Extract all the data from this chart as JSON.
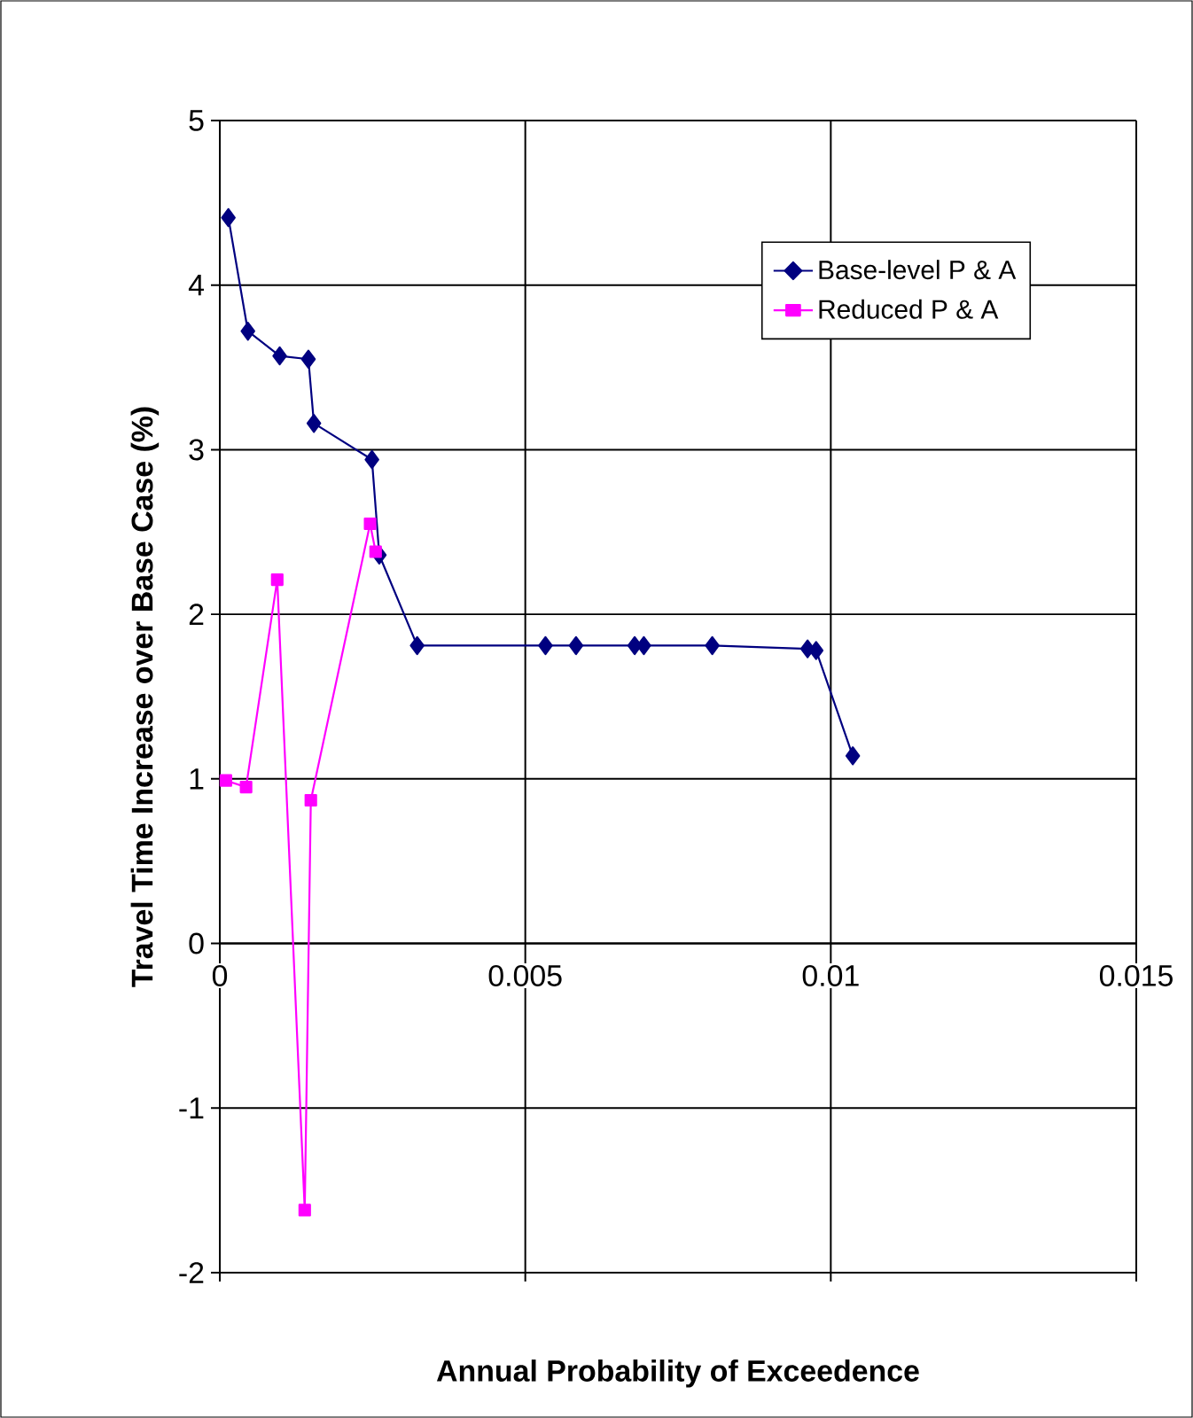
{
  "chart_data": {
    "type": "line",
    "xlabel": "Annual Probability of Exceedence",
    "ylabel": "Travel Time Increase over Base Case (%)",
    "xlim": [
      0,
      0.015
    ],
    "xticks": [
      0,
      0.005,
      0.01,
      0.015
    ],
    "ylim": [
      -2,
      5
    ],
    "yticks": [
      -2,
      -1,
      0,
      1,
      2,
      3,
      4,
      5
    ],
    "grid": true,
    "legend": "top right",
    "series": [
      {
        "name": "Base-level P & A",
        "color": "#000080",
        "marker": "diamond",
        "x": [
          0.00014,
          0.00046,
          0.00098,
          0.00145,
          0.00154,
          0.00249,
          0.00261,
          0.00323,
          0.00533,
          0.00583,
          0.00679,
          0.00694,
          0.00806,
          0.00962,
          0.00976,
          0.01036
        ],
        "values": [
          4.41,
          3.72,
          3.57,
          3.55,
          3.16,
          2.94,
          2.36,
          1.81,
          1.81,
          1.81,
          1.81,
          1.81,
          1.81,
          1.79,
          1.78,
          1.14
        ]
      },
      {
        "name": "Reduced P & A",
        "color": "#ff00ff",
        "marker": "square",
        "x": [
          0.0001,
          0.00043,
          0.00094,
          0.00139,
          0.00149,
          0.00246,
          0.00255
        ],
        "values": [
          0.99,
          0.95,
          2.21,
          -1.62,
          0.87,
          2.55,
          2.38
        ]
      }
    ]
  }
}
